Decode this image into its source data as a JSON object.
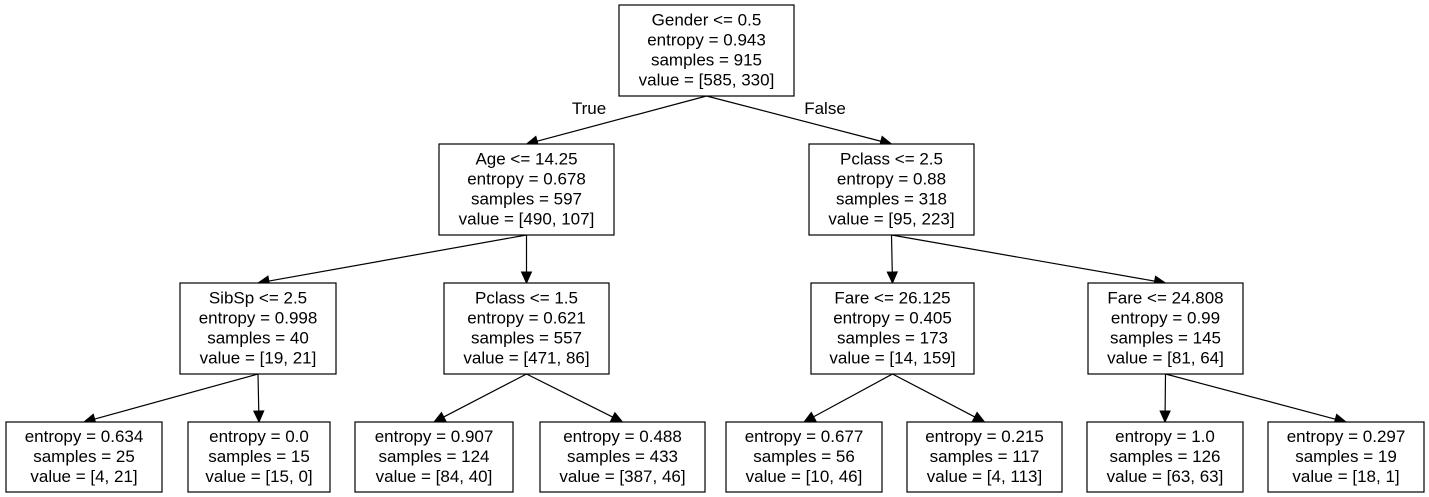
{
  "tree": {
    "nodes": [
      {
        "id": "n0",
        "lines": [
          "Gender <= 0.5",
          "entropy = 0.943",
          "samples = 915",
          "value = [585, 330]"
        ]
      },
      {
        "id": "n1",
        "lines": [
          "Age <= 14.25",
          "entropy = 0.678",
          "samples = 597",
          "value = [490, 107]"
        ]
      },
      {
        "id": "n2",
        "lines": [
          "Pclass <= 2.5",
          "entropy = 0.88",
          "samples = 318",
          "value = [95, 223]"
        ]
      },
      {
        "id": "n3",
        "lines": [
          "SibSp <= 2.5",
          "entropy = 0.998",
          "samples = 40",
          "value = [19, 21]"
        ]
      },
      {
        "id": "n4",
        "lines": [
          "Pclass <= 1.5",
          "entropy = 0.621",
          "samples = 557",
          "value = [471, 86]"
        ]
      },
      {
        "id": "n5",
        "lines": [
          "Fare <= 26.125",
          "entropy = 0.405",
          "samples = 173",
          "value = [14, 159]"
        ]
      },
      {
        "id": "n6",
        "lines": [
          "Fare <= 24.808",
          "entropy = 0.99",
          "samples = 145",
          "value = [81, 64]"
        ]
      },
      {
        "id": "n7",
        "lines": [
          "entropy = 0.634",
          "samples = 25",
          "value = [4, 21]"
        ]
      },
      {
        "id": "n8",
        "lines": [
          "entropy = 0.0",
          "samples = 15",
          "value = [15, 0]"
        ]
      },
      {
        "id": "n9",
        "lines": [
          "entropy = 0.907",
          "samples = 124",
          "value = [84, 40]"
        ]
      },
      {
        "id": "n10",
        "lines": [
          "entropy = 0.488",
          "samples = 433",
          "value = [387, 46]"
        ]
      },
      {
        "id": "n11",
        "lines": [
          "entropy = 0.677",
          "samples = 56",
          "value = [10, 46]"
        ]
      },
      {
        "id": "n12",
        "lines": [
          "entropy = 0.215",
          "samples = 117",
          "value = [4, 113]"
        ]
      },
      {
        "id": "n13",
        "lines": [
          "entropy = 1.0",
          "samples = 126",
          "value = [63, 63]"
        ]
      },
      {
        "id": "n14",
        "lines": [
          "entropy = 0.297",
          "samples = 19",
          "value = [18, 1]"
        ]
      }
    ],
    "edges": [
      {
        "from": "n0",
        "to": "n1",
        "label": "True"
      },
      {
        "from": "n0",
        "to": "n2",
        "label": "False"
      },
      {
        "from": "n1",
        "to": "n3"
      },
      {
        "from": "n1",
        "to": "n4"
      },
      {
        "from": "n2",
        "to": "n5"
      },
      {
        "from": "n2",
        "to": "n6"
      },
      {
        "from": "n3",
        "to": "n7"
      },
      {
        "from": "n3",
        "to": "n8"
      },
      {
        "from": "n4",
        "to": "n9"
      },
      {
        "from": "n4",
        "to": "n10"
      },
      {
        "from": "n5",
        "to": "n11"
      },
      {
        "from": "n5",
        "to": "n12"
      },
      {
        "from": "n6",
        "to": "n13"
      },
      {
        "from": "n6",
        "to": "n14"
      }
    ]
  }
}
